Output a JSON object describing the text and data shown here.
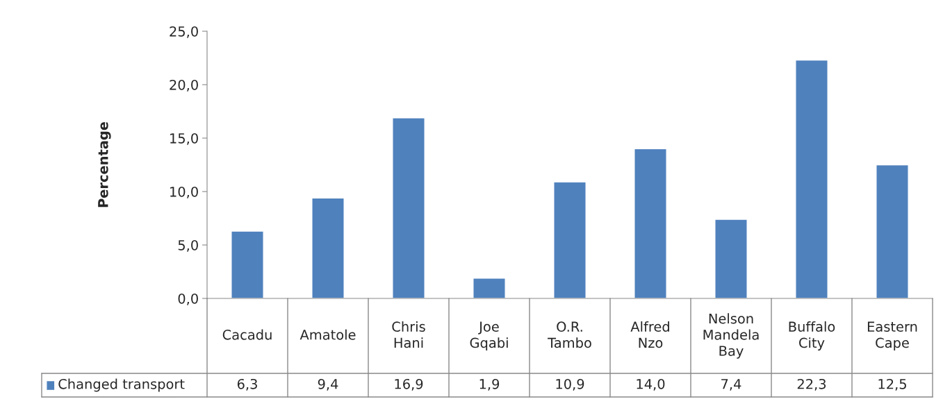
{
  "chart_data": {
    "type": "bar",
    "ylabel": "Percentage",
    "categories": [
      "Cacadu",
      "Amatole",
      "Chris Hani",
      "Joe Gqabi",
      "O.R. Tambo",
      "Alfred Nzo",
      "Nelson Mandela Bay",
      "Buffalo City",
      "Eastern Cape"
    ],
    "series": [
      {
        "name": "Changed transport",
        "color": "#4f81bd",
        "values": [
          6.3,
          9.4,
          16.9,
          1.9,
          10.9,
          14.0,
          7.4,
          22.3,
          12.5
        ],
        "value_labels": [
          "6,3",
          "9,4",
          "16,9",
          "1,9",
          "10,9",
          "14,0",
          "7,4",
          "22,3",
          "12,5"
        ]
      }
    ],
    "ylim": [
      0,
      25
    ],
    "yticks": [
      {
        "value": 0,
        "label": "0,0"
      },
      {
        "value": 5,
        "label": "5,0"
      },
      {
        "value": 10,
        "label": "10,0"
      },
      {
        "value": 15,
        "label": "15,0"
      },
      {
        "value": 20,
        "label": "20,0"
      },
      {
        "value": 25,
        "label": "25,0"
      }
    ],
    "grid": false,
    "legend": "bottom"
  }
}
